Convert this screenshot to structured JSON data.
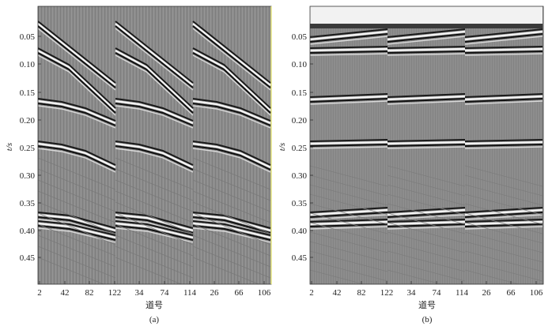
{
  "figure": {
    "panels": [
      {
        "label": "(a)",
        "ylabel": "t/s",
        "xlabel": "道号",
        "y_ticks": [
          "0.05",
          "0.10",
          "0.15",
          "0.20",
          "0.25",
          "0.30",
          "0.35",
          "0.40",
          "0.45"
        ],
        "x_ticks": [
          "2",
          "42",
          "82",
          "122",
          "34",
          "74",
          "114",
          "26",
          "66",
          "106"
        ],
        "background": "#8a8a8a",
        "gathers": 3
      },
      {
        "label": "(b)",
        "ylabel": "t/s",
        "xlabel": "道号",
        "y_ticks": [
          "0.05",
          "0.10",
          "0.15",
          "0.20",
          "0.25",
          "0.30",
          "0.35",
          "0.40",
          "0.45"
        ],
        "x_ticks": [
          "2",
          "42",
          "82",
          "122",
          "34",
          "74",
          "114",
          "26",
          "66",
          "106"
        ],
        "background": "#8d8d8d",
        "gathers": 3
      }
    ],
    "colors": {
      "peak": "#ffffff",
      "trough": "#000000",
      "frame": "#333333",
      "edge_accent": "#e6e66a"
    }
  }
}
